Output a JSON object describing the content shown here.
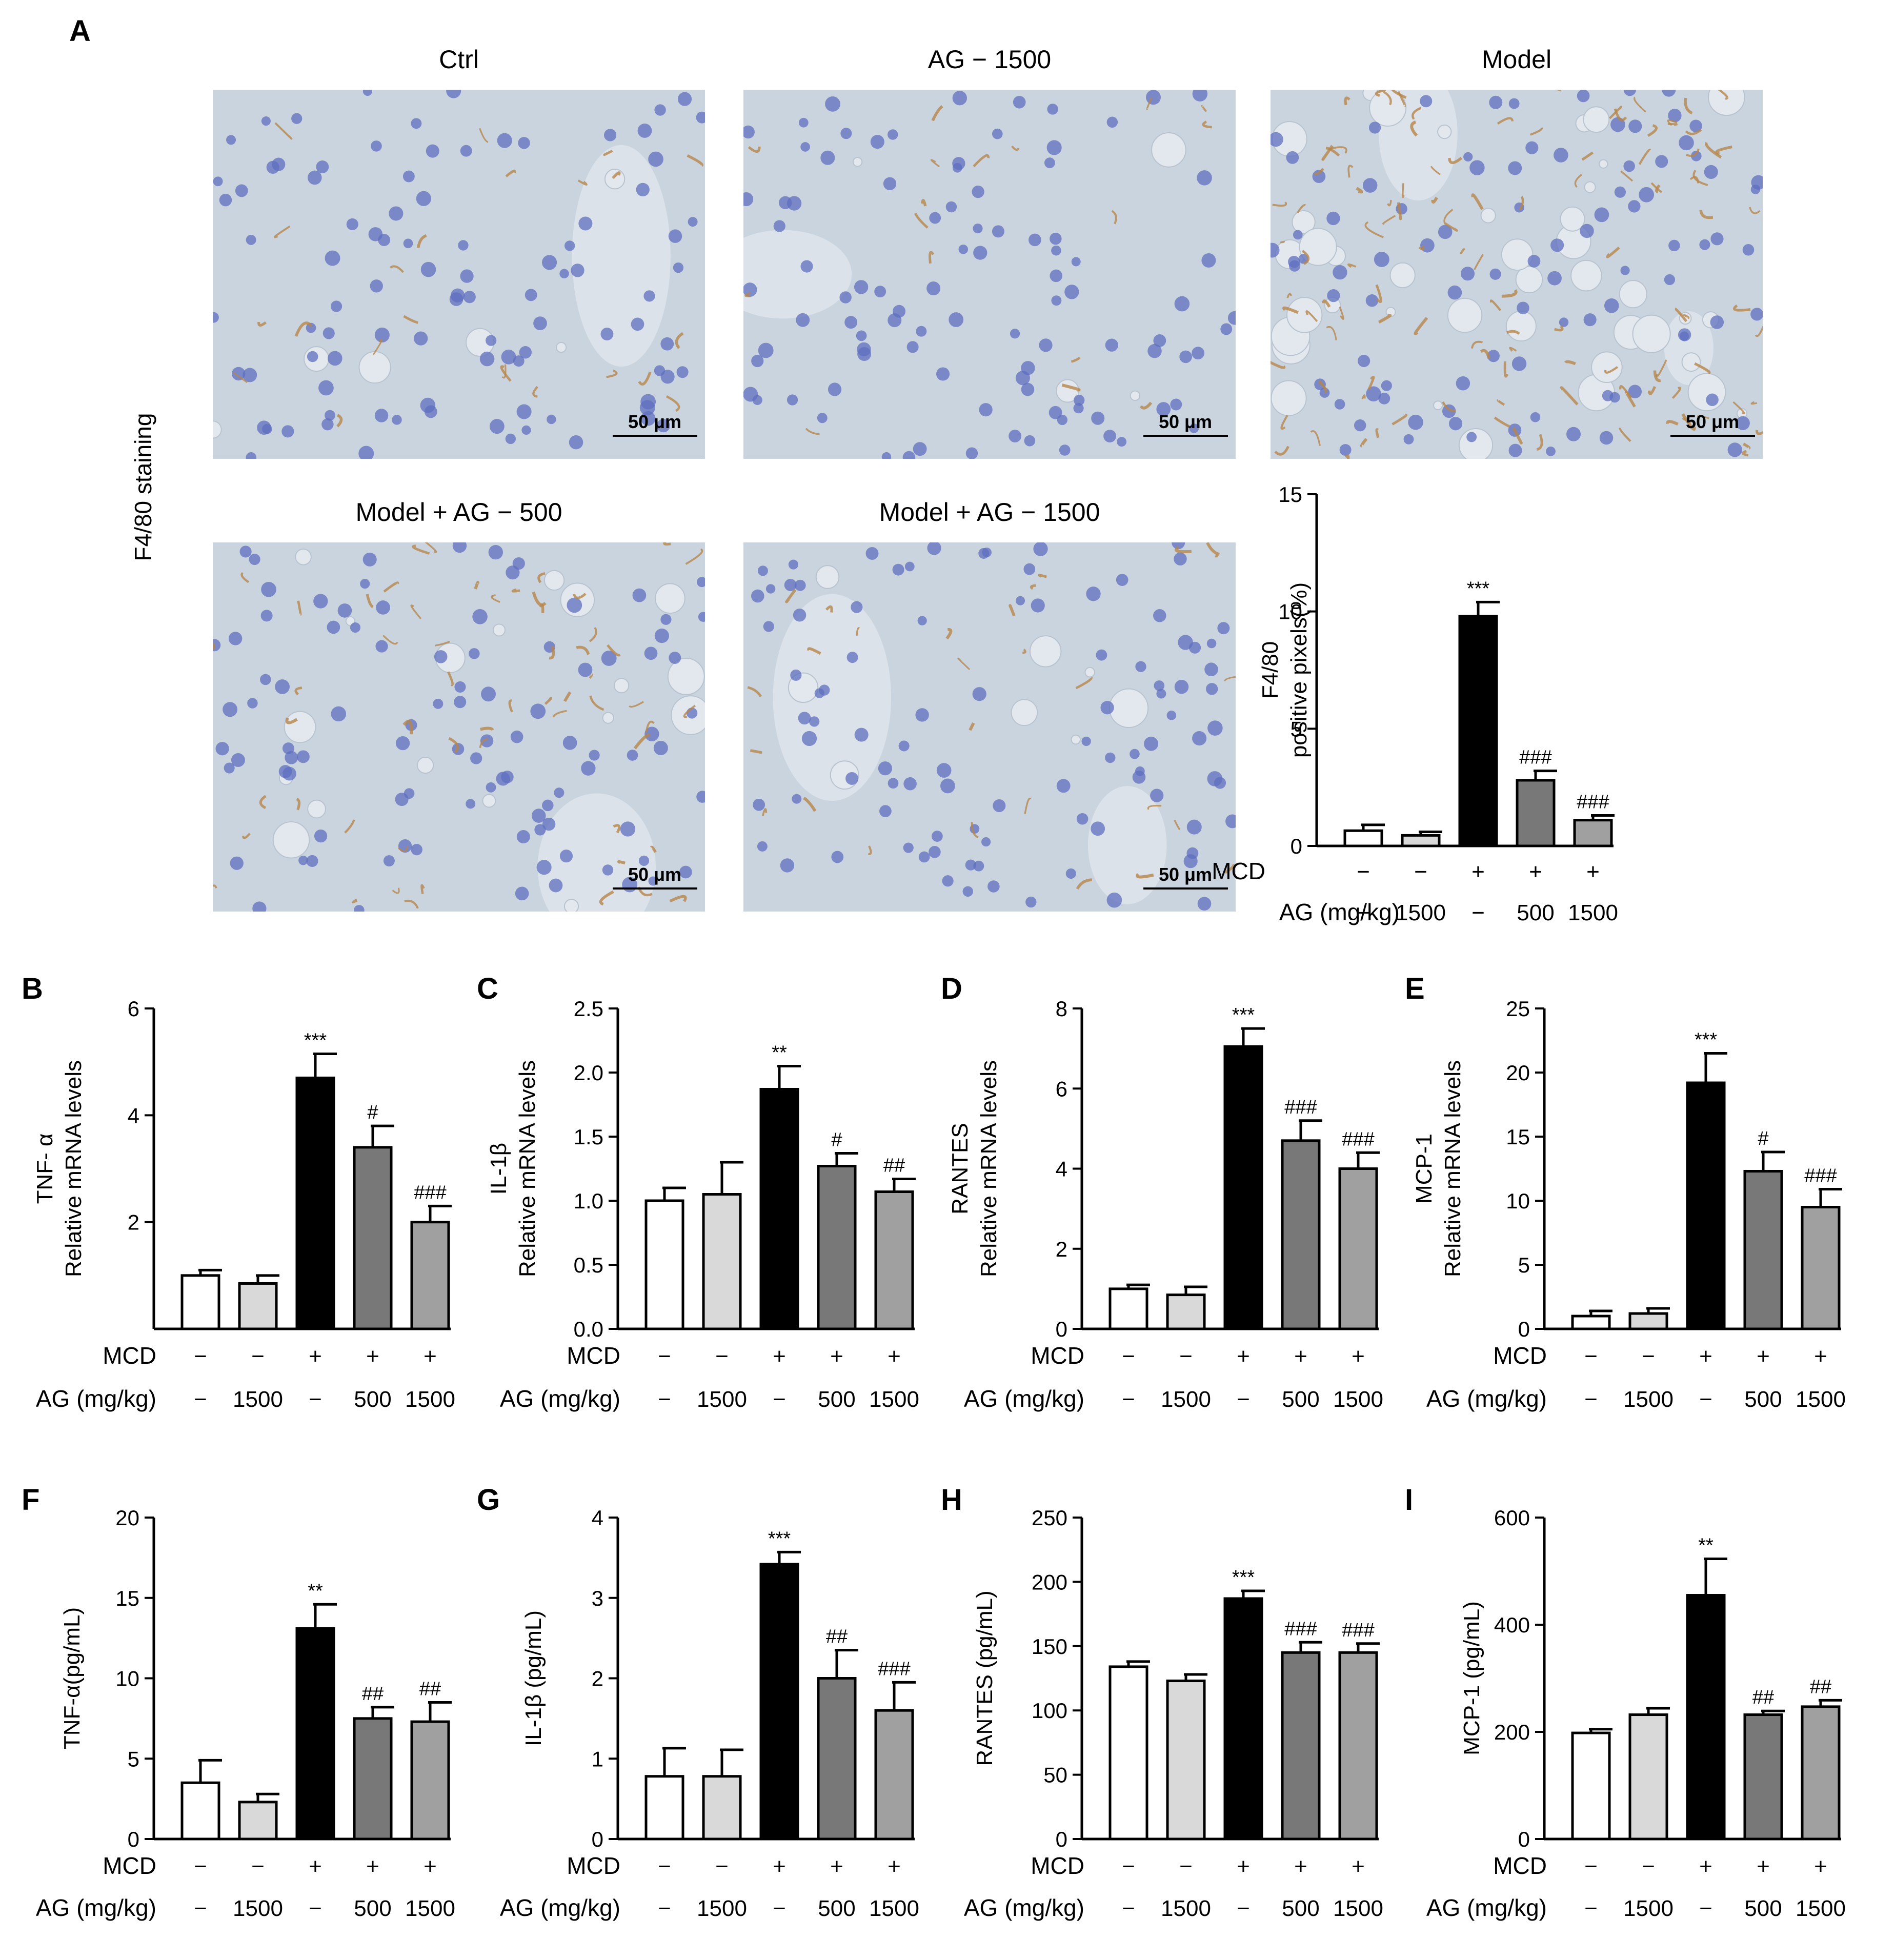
{
  "panel_letters": [
    "A",
    "B",
    "C",
    "D",
    "E",
    "F",
    "G",
    "H",
    "I"
  ],
  "vertical_label": "F4/80 staining",
  "micrographs": [
    {
      "title": "Ctrl",
      "scale": "50 μm",
      "stain_level": 0.15
    },
    {
      "title": "AG − 1500",
      "scale": "50 μm",
      "stain_level": 0.1
    },
    {
      "title": "Model",
      "scale": "50 μm",
      "stain_level": 1.0
    },
    {
      "title": "Model + AG − 500",
      "scale": "50 μm",
      "stain_level": 0.45
    },
    {
      "title": "Model + AG − 1500",
      "scale": "50 μm",
      "stain_level": 0.2
    }
  ],
  "row_labels": {
    "mcd": "MCD",
    "ag": "AG (mg/kg)"
  },
  "treatments": {
    "mcd": [
      "−",
      "−",
      "+",
      "+",
      "+"
    ],
    "ag": [
      "−",
      "1500",
      "−",
      "500",
      "1500"
    ]
  },
  "colors": {
    "bars": [
      "#ffffff",
      "#d9d9d9",
      "#000000",
      "#787878",
      "#a0a0a0"
    ],
    "stroke": "#000000",
    "stain": "#b8864a",
    "nuclei": "#5f6fbf"
  },
  "chart_data": [
    {
      "panel": "A",
      "type": "bar",
      "ylabel_lines": [
        "F4/80",
        "positive pixels(%)"
      ],
      "ylim": [
        0,
        15
      ],
      "yticks": [
        "0",
        "5",
        "10",
        "15"
      ],
      "values": [
        0.65,
        0.45,
        9.8,
        2.8,
        1.1
      ],
      "errors": [
        0.25,
        0.15,
        0.6,
        0.4,
        0.2
      ],
      "annotations": [
        "",
        "",
        "***",
        "###",
        "###"
      ]
    },
    {
      "panel": "B",
      "type": "bar",
      "ylabel_lines": [
        "TNF- α",
        "Relative mRNA levels"
      ],
      "ylim": [
        0,
        6
      ],
      "yticks": [
        "2",
        "4",
        "6"
      ],
      "values": [
        1.0,
        0.85,
        4.7,
        3.4,
        2.0
      ],
      "errors": [
        0.1,
        0.15,
        0.45,
        0.4,
        0.3
      ],
      "annotations": [
        "",
        "",
        "***",
        "#",
        "###"
      ]
    },
    {
      "panel": "C",
      "type": "bar",
      "ylabel_lines": [
        "IL-1β",
        "Relative mRNA levels"
      ],
      "ylim": [
        0,
        2.5
      ],
      "yticks": [
        "0.0",
        "0.5",
        "1.0",
        "1.5",
        "2.0",
        "2.5"
      ],
      "values": [
        1.0,
        1.05,
        1.87,
        1.27,
        1.07
      ],
      "errors": [
        0.1,
        0.25,
        0.18,
        0.1,
        0.1
      ],
      "annotations": [
        "",
        "",
        "**",
        "#",
        "##"
      ]
    },
    {
      "panel": "D",
      "type": "bar",
      "ylabel_lines": [
        "RANTES",
        "Relative mRNA levels"
      ],
      "ylim": [
        0,
        8
      ],
      "yticks": [
        "0",
        "2",
        "4",
        "6",
        "8"
      ],
      "values": [
        1.0,
        0.85,
        7.05,
        4.7,
        4.0
      ],
      "errors": [
        0.1,
        0.2,
        0.45,
        0.5,
        0.4
      ],
      "annotations": [
        "",
        "",
        "***",
        "###",
        "###"
      ]
    },
    {
      "panel": "E",
      "type": "bar",
      "ylabel_lines": [
        "MCP-1",
        "Relative mRNA levels"
      ],
      "ylim": [
        0,
        25
      ],
      "yticks": [
        "0",
        "5",
        "10",
        "15",
        "20",
        "25"
      ],
      "values": [
        1.0,
        1.2,
        19.2,
        12.3,
        9.5
      ],
      "errors": [
        0.4,
        0.4,
        2.3,
        1.5,
        1.4
      ],
      "annotations": [
        "",
        "",
        "***",
        "#",
        "###"
      ]
    },
    {
      "panel": "F",
      "type": "bar",
      "ylabel_lines": [
        "TNF-α(pg/mL)"
      ],
      "ylim": [
        0,
        20
      ],
      "yticks": [
        "0",
        "5",
        "10",
        "15",
        "20"
      ],
      "values": [
        3.5,
        2.3,
        13.1,
        7.5,
        7.3
      ],
      "errors": [
        1.4,
        0.5,
        1.5,
        0.7,
        1.2
      ],
      "annotations": [
        "",
        "",
        "**",
        "##",
        "##"
      ]
    },
    {
      "panel": "G",
      "type": "bar",
      "ylabel_lines": [
        "IL-1β (pg/mL)"
      ],
      "ylim": [
        0,
        4
      ],
      "yticks": [
        "0",
        "1",
        "2",
        "3",
        "4"
      ],
      "values": [
        0.78,
        0.78,
        3.42,
        2.0,
        1.6
      ],
      "errors": [
        0.35,
        0.33,
        0.15,
        0.35,
        0.35
      ],
      "annotations": [
        "",
        "",
        "***",
        "##",
        "###"
      ]
    },
    {
      "panel": "H",
      "type": "bar",
      "ylabel_lines": [
        "RANTES (pg/mL)"
      ],
      "ylim": [
        0,
        250
      ],
      "yticks": [
        "0",
        "50",
        "100",
        "150",
        "200",
        "250"
      ],
      "values": [
        134,
        123,
        187,
        145,
        145
      ],
      "errors": [
        4,
        5,
        6,
        8,
        7
      ],
      "annotations": [
        "",
        "",
        "***",
        "###",
        "###"
      ]
    },
    {
      "panel": "I",
      "type": "bar",
      "ylabel_lines": [
        "MCP-1 (pg/mL)"
      ],
      "ylim": [
        0,
        600
      ],
      "yticks": [
        "0",
        "200",
        "400",
        "600"
      ],
      "values": [
        198,
        232,
        455,
        232,
        247
      ],
      "errors": [
        7,
        12,
        68,
        7,
        12
      ],
      "annotations": [
        "",
        "",
        "**",
        "##",
        "##"
      ]
    }
  ]
}
